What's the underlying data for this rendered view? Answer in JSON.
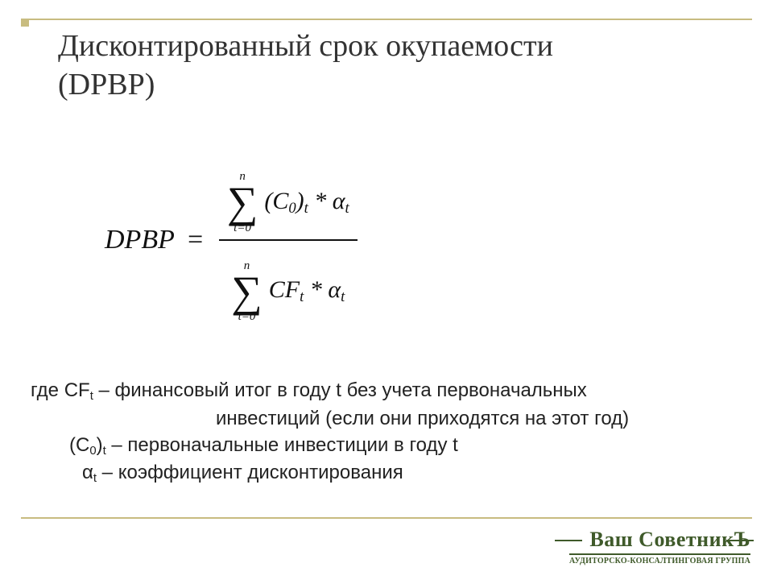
{
  "title": {
    "line1": "Дисконтированный срок окупаемости",
    "line2": "(DPBP)"
  },
  "formula": {
    "lhs": "DPBP",
    "eq": "=",
    "upper_limit": "n",
    "lower_limit": "t=0",
    "numerator_term": "(C₀)ₜ * αₜ",
    "denominator_term": "CFₜ * αₜ"
  },
  "explanation": {
    "line1_prefix": "где  CF",
    "line1_sub": "t",
    "line1_rest": " – финансовый итог в году t без учета первоначальных",
    "line2": "инвестиций (если они приходятся на этот год)",
    "line3_prefix": "(C",
    "line3_sub0": "0",
    "line3_mid": ")",
    "line3_subt": "t",
    "line3_rest": " – первоначальные инвестиции в году t",
    "line4_prefix": "α",
    "line4_sub": "t",
    "line4_rest": "  –  коэффициент дисконтирования"
  },
  "logo": {
    "brand": "Ваш СоветникЪ",
    "sub": "АУДИТОРСКО-КОНСАЛТИНГОВАЯ ГРУППА"
  },
  "colors": {
    "accent": "#c8bc80",
    "text": "#333333",
    "logo": "#3f5a2a",
    "background": "#ffffff"
  }
}
